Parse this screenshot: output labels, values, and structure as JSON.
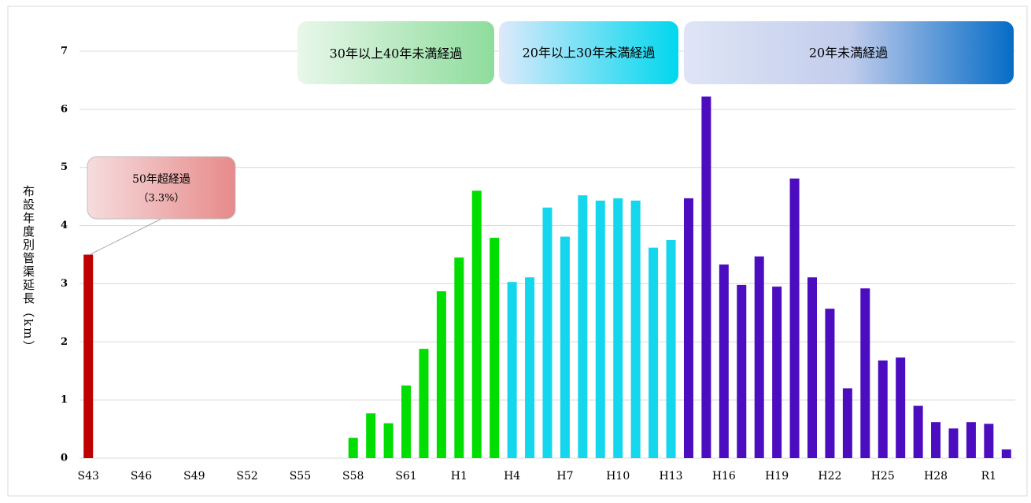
{
  "chart_data": {
    "type": "bar",
    "y_label": "布設年度別管渠延長（km）",
    "categories": [
      "S43",
      null,
      null,
      "S46",
      null,
      null,
      "S49",
      null,
      null,
      "S52",
      null,
      null,
      "S55",
      null,
      null,
      "S58",
      null,
      null,
      "S61",
      null,
      null,
      "H1",
      null,
      null,
      "H4",
      null,
      null,
      "H7",
      null,
      null,
      "H10",
      null,
      null,
      "H13",
      null,
      null,
      "H16",
      null,
      null,
      "H19",
      null,
      null,
      "H22",
      null,
      null,
      "H25",
      null,
      null,
      "H28",
      null,
      null,
      "R1",
      null
    ],
    "values": [
      3.5,
      0,
      0,
      0,
      0,
      0,
      0,
      0,
      0,
      0,
      0,
      0,
      0,
      0,
      0,
      0.35,
      0.77,
      0.6,
      1.25,
      1.88,
      2.87,
      3.45,
      4.6,
      3.79,
      3.03,
      3.11,
      4.31,
      3.81,
      4.52,
      4.43,
      4.47,
      4.43,
      3.62,
      3.75,
      4.47,
      6.22,
      3.33,
      2.98,
      3.47,
      2.95,
      4.81,
      3.11,
      2.57,
      1.2,
      2.92,
      1.68,
      1.73,
      0.9,
      0.62,
      0.51,
      0.62,
      0.59,
      0.15
    ],
    "colors": [
      "#c00000",
      "#00dd00",
      "#00dd00",
      "#00dd00",
      "#00dd00",
      "#00dd00",
      "#00dd00",
      "#00dd00",
      "#00dd00",
      "#00dd00",
      "#00dd00",
      "#00dd00",
      "#00dd00",
      "#00dd00",
      "#00dd00",
      "#00dd00",
      "#00dd00",
      "#00dd00",
      "#00dd00",
      "#00dd00",
      "#00dd00",
      "#00dd00",
      "#00dd00",
      "#00dd00",
      "#14d6ec",
      "#14d6ec",
      "#14d6ec",
      "#14d6ec",
      "#14d6ec",
      "#14d6ec",
      "#14d6ec",
      "#14d6ec",
      "#14d6ec",
      "#14d6ec",
      "#4b0dbf",
      "#4b0dbf",
      "#4b0dbf",
      "#4b0dbf",
      "#4b0dbf",
      "#4b0dbf",
      "#4b0dbf",
      "#4b0dbf",
      "#4b0dbf",
      "#4b0dbf",
      "#4b0dbf",
      "#4b0dbf",
      "#4b0dbf",
      "#4b0dbf",
      "#4b0dbf",
      "#4b0dbf",
      "#4b0dbf",
      "#4b0dbf",
      "#4b0dbf"
    ],
    "ylim": [
      0,
      7
    ],
    "yticks": [
      0,
      1,
      2,
      3,
      4,
      5,
      6,
      7
    ],
    "grid": true,
    "annotations": [
      "30年以上40年未満経過",
      "20年以上30年未満経過",
      "20年未満経過",
      "50年超経過",
      "（3.3%）"
    ]
  }
}
